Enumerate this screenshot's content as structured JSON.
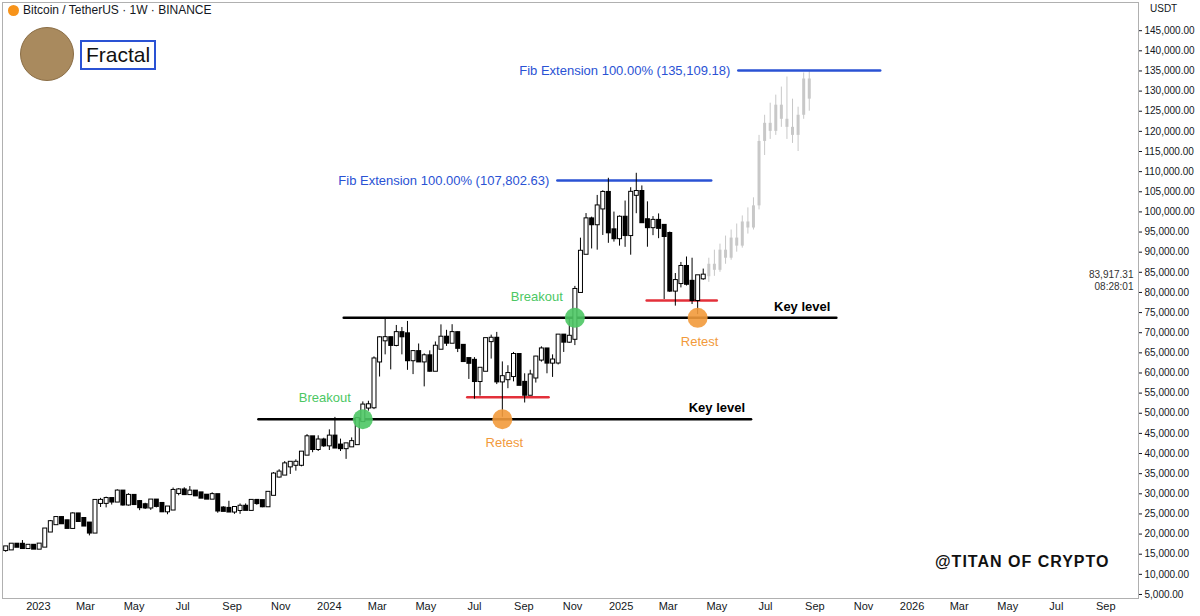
{
  "chart_data": {
    "type": "candlestick",
    "title": "Bitcoin / TetherUS · 1W · BINANCE",
    "subtitle": "Fractal",
    "caption": "@TITAN OF CRYPTO",
    "y_label": "USDT",
    "grid": false,
    "x": [
      "2022-11-21",
      "2022-11-28",
      "2022-12-05",
      "2022-12-12",
      "2022-12-19",
      "2022-12-26",
      "2023-01-02",
      "2023-01-09",
      "2023-01-16",
      "2023-01-23",
      "2023-01-30",
      "2023-02-06",
      "2023-02-13",
      "2023-02-20",
      "2023-02-27",
      "2023-03-06",
      "2023-03-13",
      "2023-03-20",
      "2023-03-27",
      "2023-04-03",
      "2023-04-10",
      "2023-04-17",
      "2023-04-24",
      "2023-05-01",
      "2023-05-08",
      "2023-05-15",
      "2023-05-22",
      "2023-05-29",
      "2023-06-05",
      "2023-06-12",
      "2023-06-19",
      "2023-06-26",
      "2023-07-03",
      "2023-07-10",
      "2023-07-17",
      "2023-07-24",
      "2023-07-31",
      "2023-08-07",
      "2023-08-14",
      "2023-08-21",
      "2023-08-28",
      "2023-09-04",
      "2023-09-11",
      "2023-09-18",
      "2023-09-25",
      "2023-10-02",
      "2023-10-09",
      "2023-10-16",
      "2023-10-23",
      "2023-10-30",
      "2023-11-06",
      "2023-11-13",
      "2023-11-20",
      "2023-11-27",
      "2023-12-04",
      "2023-12-11",
      "2023-12-18",
      "2023-12-25",
      "2024-01-01",
      "2024-01-08",
      "2024-01-15",
      "2024-01-22",
      "2024-01-29",
      "2024-02-05",
      "2024-02-12",
      "2024-02-19",
      "2024-02-26",
      "2024-03-04",
      "2024-03-11",
      "2024-03-18",
      "2024-03-25",
      "2024-04-01",
      "2024-04-08",
      "2024-04-15",
      "2024-04-22",
      "2024-04-29",
      "2024-05-06",
      "2024-05-13",
      "2024-05-20",
      "2024-05-27",
      "2024-06-03",
      "2024-06-10",
      "2024-06-17",
      "2024-06-24",
      "2024-07-01",
      "2024-07-08",
      "2024-07-15",
      "2024-07-22",
      "2024-07-29",
      "2024-08-05",
      "2024-08-12",
      "2024-08-19",
      "2024-08-26",
      "2024-09-02",
      "2024-09-09",
      "2024-09-16",
      "2024-09-23",
      "2024-09-30",
      "2024-10-07",
      "2024-10-14",
      "2024-10-21",
      "2024-10-28",
      "2024-11-04",
      "2024-11-11",
      "2024-11-18",
      "2024-11-25",
      "2024-12-02",
      "2024-12-09",
      "2024-12-16",
      "2024-12-23",
      "2024-12-30",
      "2025-01-06",
      "2025-01-13",
      "2025-01-20",
      "2025-01-27",
      "2025-02-03",
      "2025-02-10",
      "2025-02-17",
      "2025-02-24",
      "2025-03-03",
      "2025-03-10",
      "2025-03-17",
      "2025-03-24",
      "2025-03-31",
      "2025-04-07",
      "2025-04-14"
    ],
    "open": [
      16280,
      16440,
      17110,
      17090,
      16780,
      16840,
      16620,
      17130,
      20880,
      22700,
      23730,
      22930,
      21770,
      24630,
      23490,
      22360,
      20620,
      27980,
      27990,
      28450,
      28320,
      30300,
      27590,
      29230,
      27700,
      26920,
      26850,
      28070,
      27230,
      25900,
      26340,
      30460,
      30590,
      30170,
      30290,
      29860,
      29280,
      29040,
      29420,
      26100,
      26000,
      25840,
      26230,
      26530,
      26250,
      27990,
      27940,
      27150,
      29990,
      34530,
      35020,
      37060,
      37450,
      37450,
      39970,
      43780,
      41370,
      42990,
      42280,
      43950,
      41730,
      41580,
      42030,
      42580,
      48300,
      51660,
      51730,
      63110,
      68360,
      68400,
      67210,
      69650,
      69360,
      63420,
      64940,
      63120,
      63900,
      60800,
      66270,
      68510,
      67760,
      69650,
      66490,
      63210,
      62770,
      58250,
      60800,
      68160,
      68250,
      58160,
      58710,
      59490,
      64220,
      57300,
      54840,
      59130,
      63580,
      65600,
      62820,
      62850,
      69030,
      68020,
      68740,
      80370,
      89850,
      97900,
      97185,
      101110,
      104460,
      95180,
      93720,
      98300,
      94500,
      104490,
      104700,
      97690,
      96460,
      97520,
      96280,
      94270,
      80700,
      82580,
      86080,
      82390,
      78370,
      83760
    ],
    "high": [
      16820,
      17420,
      17430,
      18390,
      17060,
      16970,
      17180,
      21260,
      23370,
      23960,
      24260,
      23440,
      25250,
      25130,
      23880,
      22600,
      28400,
      28870,
      29170,
      28800,
      31000,
      30500,
      30020,
      29820,
      28330,
      27650,
      28260,
      28450,
      27400,
      26800,
      31430,
      31280,
      31500,
      31800,
      30440,
      29990,
      29530,
      30250,
      29690,
      26800,
      28140,
      26400,
      27480,
      27480,
      28100,
      28580,
      27990,
      30400,
      35280,
      35980,
      38000,
      37980,
      38430,
      40000,
      44700,
      43800,
      44400,
      43800,
      45880,
      48970,
      43580,
      42260,
      43880,
      48590,
      52820,
      52980,
      64000,
      69000,
      73780,
      68920,
      71800,
      71300,
      72800,
      65450,
      67200,
      64740,
      65500,
      67700,
      71950,
      70600,
      71990,
      70200,
      66980,
      63370,
      63820,
      61050,
      68370,
      69400,
      70080,
      62750,
      61800,
      65100,
      64500,
      59800,
      60670,
      64130,
      66500,
      66000,
      64500,
      69500,
      69500,
      73620,
      81500,
      93480,
      99590,
      98700,
      104090,
      105250,
      108350,
      99960,
      99000,
      102700,
      106000,
      109590,
      106450,
      102500,
      98830,
      99500,
      96500,
      95000,
      84700,
      87450,
      88800,
      88500,
      83600,
      85800
    ],
    "low": [
      15480,
      16000,
      16870,
      16530,
      16260,
      16330,
      16540,
      17100,
      20400,
      22300,
      22520,
      21440,
      21350,
      22960,
      21970,
      19550,
      20540,
      26600,
      26500,
      27200,
      28170,
      26940,
      26940,
      27680,
      25810,
      26100,
      25870,
      26500,
      25350,
      24800,
      26250,
      29500,
      29700,
      29950,
      29500,
      28860,
      28600,
      28700,
      25170,
      25800,
      25350,
      24900,
      24900,
      26000,
      25990,
      27160,
      26540,
      26830,
      29900,
      33930,
      34530,
      34800,
      35630,
      36700,
      39960,
      40200,
      40500,
      41500,
      40750,
      41500,
      40500,
      38550,
      41800,
      42250,
      47700,
      50520,
      50900,
      59000,
      64500,
      60770,
      66500,
      64500,
      60660,
      59600,
      62800,
      56550,
      60190,
      60600,
      66100,
      66600,
      67500,
      65070,
      63200,
      58400,
      53480,
      54260,
      60700,
      63450,
      57120,
      49000,
      56100,
      57790,
      57200,
      52550,
      54600,
      57500,
      62700,
      59800,
      58900,
      62000,
      65100,
      67400,
      66800,
      80200,
      89380,
      90800,
      90500,
      94150,
      92200,
      92500,
      91500,
      91200,
      89250,
      99550,
      97400,
      91230,
      94100,
      93350,
      78250,
      80000,
      76600,
      81130,
      81600,
      77000,
      74500,
      83000
    ],
    "close": [
      16440,
      17110,
      17090,
      16780,
      16840,
      16620,
      17130,
      20880,
      22700,
      23730,
      22930,
      21770,
      24630,
      23490,
      22360,
      20620,
      27980,
      27990,
      28450,
      28320,
      30300,
      27590,
      29230,
      27700,
      26920,
      26850,
      28070,
      27230,
      25900,
      26340,
      30460,
      30590,
      30170,
      30290,
      29860,
      29280,
      29040,
      29420,
      26100,
      26000,
      25840,
      26230,
      26530,
      26250,
      27990,
      27940,
      27150,
      29990,
      34530,
      35020,
      37060,
      37450,
      37450,
      39970,
      43780,
      41370,
      42990,
      42280,
      43950,
      41730,
      41580,
      42030,
      42580,
      48300,
      51660,
      51730,
      63110,
      68360,
      68400,
      67210,
      69650,
      69360,
      63420,
      64940,
      63120,
      63900,
      60800,
      66270,
      68510,
      67760,
      69650,
      66490,
      63210,
      62770,
      58250,
      60800,
      68160,
      68250,
      58160,
      58710,
      59490,
      64220,
      57300,
      54840,
      59130,
      63580,
      65600,
      62820,
      62850,
      69030,
      68020,
      68740,
      80370,
      89850,
      97900,
      97185,
      101110,
      104460,
      95180,
      93720,
      98300,
      94500,
      104490,
      104700,
      97690,
      96460,
      97520,
      96280,
      94270,
      80700,
      82580,
      86080,
      82390,
      78370,
      83760,
      83917.31
    ],
    "projection": {
      "color": "#c8c8c8",
      "x": [
        "2025-04-21",
        "2025-04-28",
        "2025-05-05",
        "2025-05-12",
        "2025-05-19",
        "2025-05-26",
        "2025-06-02",
        "2025-06-09",
        "2025-06-16",
        "2025-06-23",
        "2025-06-30",
        "2025-07-07",
        "2025-07-14",
        "2025-07-21",
        "2025-07-28",
        "2025-08-04",
        "2025-08-11",
        "2025-08-18",
        "2025-08-25"
      ],
      "open": [
        83900,
        87000,
        85500,
        90500,
        88500,
        93500,
        91500,
        97500,
        96000,
        101500,
        117500,
        122000,
        120000,
        126500,
        123000,
        121000,
        119000,
        124000,
        133000
      ],
      "high": [
        88500,
        90500,
        92000,
        94000,
        95500,
        97000,
        99000,
        101000,
        103500,
        119000,
        124000,
        127000,
        129000,
        131000,
        133500,
        128000,
        126000,
        134500,
        135100
      ],
      "low": [
        82500,
        84000,
        85000,
        87000,
        88000,
        90000,
        91000,
        94500,
        95500,
        100500,
        114000,
        118000,
        119000,
        121000,
        118000,
        117000,
        115000,
        123000,
        125000
      ],
      "close": [
        87000,
        85500,
        90500,
        88500,
        93500,
        91500,
        97500,
        96000,
        101500,
        117500,
        122000,
        120000,
        126500,
        123000,
        121000,
        119000,
        124000,
        133000,
        128000
      ]
    },
    "xlim": [
      "2022-11-17",
      "2026-10-12"
    ],
    "xticks": [
      {
        "value": "2023-01-01",
        "label": "2023"
      },
      {
        "value": "2023-03-01",
        "label": "Mar"
      },
      {
        "value": "2023-05-01",
        "label": "May"
      },
      {
        "value": "2023-07-01",
        "label": "Jul"
      },
      {
        "value": "2023-09-01",
        "label": "Sep"
      },
      {
        "value": "2023-11-01",
        "label": "Nov"
      },
      {
        "value": "2024-01-01",
        "label": "2024"
      },
      {
        "value": "2024-03-01",
        "label": "Mar"
      },
      {
        "value": "2024-05-01",
        "label": "May"
      },
      {
        "value": "2024-07-01",
        "label": "Jul"
      },
      {
        "value": "2024-09-01",
        "label": "Sep"
      },
      {
        "value": "2024-11-01",
        "label": "Nov"
      },
      {
        "value": "2025-01-01",
        "label": "2025"
      },
      {
        "value": "2025-03-01",
        "label": "Mar"
      },
      {
        "value": "2025-05-01",
        "label": "May"
      },
      {
        "value": "2025-07-01",
        "label": "Jul"
      },
      {
        "value": "2025-09-01",
        "label": "Sep"
      },
      {
        "value": "2025-11-01",
        "label": "Nov"
      },
      {
        "value": "2026-01-01",
        "label": "2026"
      },
      {
        "value": "2026-03-01",
        "label": "Mar"
      },
      {
        "value": "2026-05-01",
        "label": "May"
      },
      {
        "value": "2026-07-01",
        "label": "Jul"
      },
      {
        "value": "2026-09-01",
        "label": "Sep"
      }
    ],
    "ylim": [
      4000,
      152000
    ],
    "yticks": [
      {
        "value": 5000,
        "label": "5,000.00"
      },
      {
        "value": 10000,
        "label": "10,000.00"
      },
      {
        "value": 15000,
        "label": "15,000.00"
      },
      {
        "value": 20000,
        "label": "20,000.00"
      },
      {
        "value": 25000,
        "label": "25,000.00"
      },
      {
        "value": 30000,
        "label": "30,000.00"
      },
      {
        "value": 35000,
        "label": "35,000.00"
      },
      {
        "value": 40000,
        "label": "40,000.00"
      },
      {
        "value": 45000,
        "label": "45,000.00"
      },
      {
        "value": 50000,
        "label": "50,000.00"
      },
      {
        "value": 55000,
        "label": "55,000.00"
      },
      {
        "value": 60000,
        "label": "60,000.00"
      },
      {
        "value": 65000,
        "label": "65,000.00"
      },
      {
        "value": 70000,
        "label": "70,000.00"
      },
      {
        "value": 75000,
        "label": "75,000.00"
      },
      {
        "value": 80000,
        "label": "80,000.00"
      },
      {
        "value": 85000,
        "label": "85,000.00"
      },
      {
        "value": 90000,
        "label": "90,000.00"
      },
      {
        "value": 95000,
        "label": "95,000.00"
      },
      {
        "value": 100000,
        "label": "100,000.00"
      },
      {
        "value": 105000,
        "label": "105,000.00"
      },
      {
        "value": 110000,
        "label": "110,000.00"
      },
      {
        "value": 115000,
        "label": "115,000.00"
      },
      {
        "value": 120000,
        "label": "120,000.00"
      },
      {
        "value": 125000,
        "label": "125,000.00"
      },
      {
        "value": 130000,
        "label": "130,000.00"
      },
      {
        "value": 135000,
        "label": "135,000.00"
      },
      {
        "value": 140000,
        "label": "140,000.00"
      },
      {
        "value": 145000,
        "label": "145,000.00"
      }
    ],
    "last_price": {
      "value": 83917.31,
      "label": "83,917.31",
      "countdown": "08:28:01"
    },
    "key_levels": [
      {
        "text": "Key level",
        "value": 48500,
        "x": [
          "2023-10-04",
          "2025-06-13"
        ],
        "color": "#000000"
      },
      {
        "text": "Key level",
        "value": 73700,
        "x": [
          "2024-01-19",
          "2025-09-28"
        ],
        "color": "#000000"
      }
    ],
    "fib_extensions": [
      {
        "text": "Fib Extension 100.00% (107,802.63)",
        "value": 107802.63,
        "x": [
          "2024-10-13",
          "2025-04-24"
        ],
        "color": "#2a52d4"
      },
      {
        "text": "Fib Extension 100.00% (135,109.18)",
        "value": 135109.18,
        "x": [
          "2025-05-28",
          "2025-11-22"
        ],
        "color": "#2a52d4"
      }
    ],
    "supports": [
      {
        "value": 54000,
        "x": [
          "2024-06-22",
          "2024-10-02"
        ],
        "color": "#e3303a"
      },
      {
        "value": 78000,
        "x": [
          "2025-02-02",
          "2025-05-01"
        ],
        "color": "#e3303a"
      }
    ],
    "markers": [
      {
        "text": "Breakout",
        "color": "#4cc764",
        "points": [
          {
            "x": "2024-02-12",
            "value": 48500
          },
          {
            "x": "2024-11-04",
            "value": 73700
          }
        ]
      },
      {
        "text": "Retest",
        "color": "#f29a3b",
        "points": [
          {
            "x": "2024-08-05",
            "value": 48500
          },
          {
            "x": "2025-04-07",
            "value": 73700
          }
        ]
      }
    ]
  }
}
